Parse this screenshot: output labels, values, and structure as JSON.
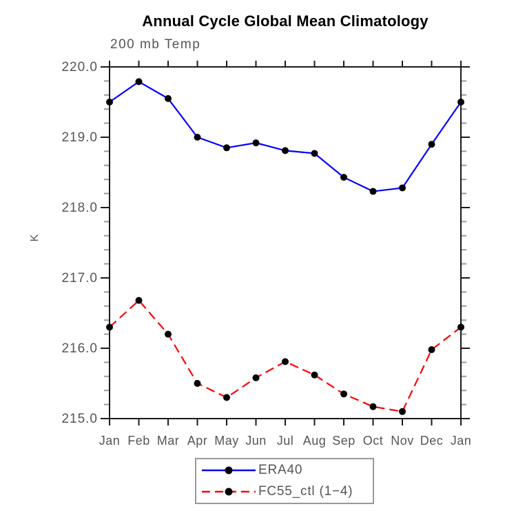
{
  "chart_data": {
    "type": "line",
    "title": "Annual Cycle Global Mean Climatology",
    "subtitle": "200 mb Temp",
    "ylabel": "K",
    "categories": [
      "Jan",
      "Feb",
      "Mar",
      "Apr",
      "May",
      "Jun",
      "Jul",
      "Aug",
      "Sep",
      "Oct",
      "Nov",
      "Dec",
      "Jan"
    ],
    "ylim": [
      215.0,
      220.0
    ],
    "y_major_tick_step": 1.0,
    "y_minor_tick_step": 0.2,
    "y_tick_labels": [
      "220.0",
      "219.0",
      "218.0",
      "217.0",
      "216.0",
      "215.0"
    ],
    "grid": false,
    "legend_position": "bottom-center",
    "marker": {
      "shape": "circle",
      "color": "#000000"
    },
    "series": [
      {
        "name": "ERA40",
        "color": "#0000ff",
        "line_style": "solid",
        "values": [
          219.5,
          219.79,
          219.55,
          219.0,
          218.85,
          218.92,
          218.81,
          218.77,
          218.43,
          218.23,
          218.28,
          218.9,
          219.5
        ]
      },
      {
        "name": "FC55_ctl (1−4)",
        "color": "#ff0000",
        "line_style": "dashed",
        "values": [
          216.3,
          216.68,
          216.2,
          215.5,
          215.3,
          215.58,
          215.81,
          215.62,
          215.35,
          215.17,
          215.1,
          215.98,
          216.3
        ]
      }
    ]
  },
  "colors": {
    "axis": "#1a1a1a",
    "minor_tick": "#999999",
    "tick_label": "#555555",
    "title": "#000000",
    "legend_border": "#999999"
  }
}
